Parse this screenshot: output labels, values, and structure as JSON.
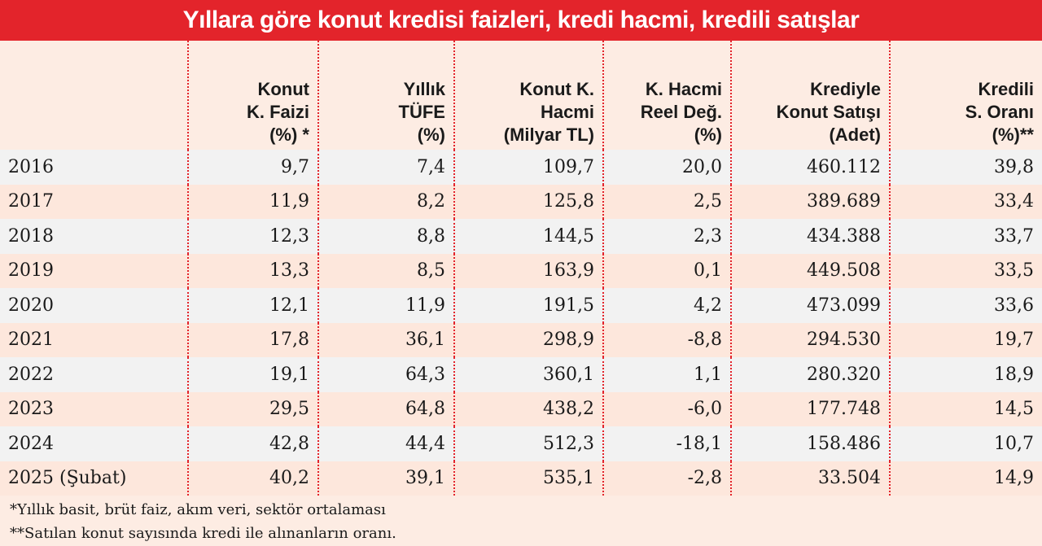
{
  "title": "Yıllara göre konut kredisi faizleri, kredi hacmi, kredili satışlar",
  "table": {
    "headers": [
      "",
      "Konut\nK. Faizi\n(%) *",
      "Yıllık\nTÜFE\n(%)",
      "Konut K.\nHacmi\n(Milyar TL)",
      "K. Hacmi\nReel Değ.\n(%)",
      "Krediyle\nKonut Satışı\n(Adet)",
      "Kredili\nS. Oranı\n(%)**"
    ],
    "rows": [
      [
        "2016",
        "9,7",
        "7,4",
        "109,7",
        "20,0",
        "460.112",
        "39,8"
      ],
      [
        "2017",
        "11,9",
        "8,2",
        "125,8",
        "2,5",
        "389.689",
        "33,4"
      ],
      [
        "2018",
        "12,3",
        "8,8",
        "144,5",
        "2,3",
        "434.388",
        "33,7"
      ],
      [
        "2019",
        "13,3",
        "8,5",
        "163,9",
        "0,1",
        "449.508",
        "33,5"
      ],
      [
        "2020",
        "12,1",
        "11,9",
        "191,5",
        "4,2",
        "473.099",
        "33,6"
      ],
      [
        "2021",
        "17,8",
        "36,1",
        "298,9",
        "-8,8",
        "294.530",
        "19,7"
      ],
      [
        "2022",
        "19,1",
        "64,3",
        "360,1",
        "1,1",
        "280.320",
        "18,9"
      ],
      [
        "2023",
        "29,5",
        "64,8",
        "438,2",
        "-6,0",
        "177.748",
        "14,5"
      ],
      [
        "2024",
        "42,8",
        "44,4",
        "512,3",
        "-18,1",
        "158.486",
        "10,7"
      ],
      [
        "2025 (Şubat)",
        "40,2",
        "39,1",
        "535,1",
        "-2,8",
        "33.504",
        "14,9"
      ]
    ]
  },
  "notes": [
    "*Yıllık basit, brüt faiz, akım veri, sektör ortalaması",
    "**Satılan konut sayısında kredi ile alınanların oranı."
  ]
}
